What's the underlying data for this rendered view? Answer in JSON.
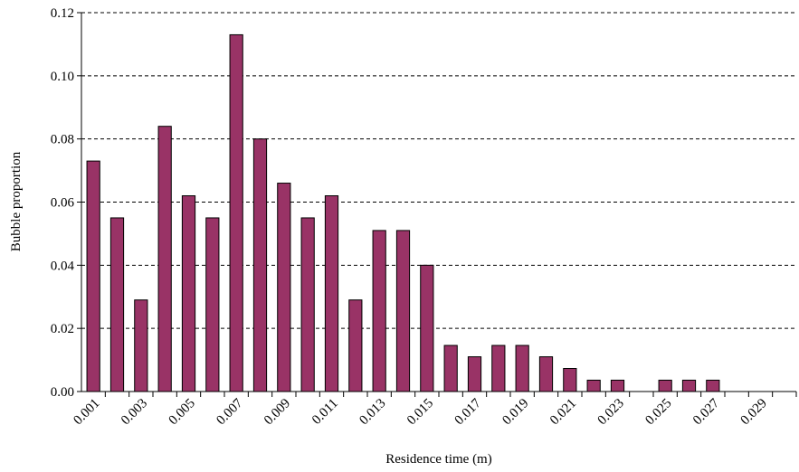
{
  "chart_data": {
    "type": "bar",
    "x_label": "Residence time (m)",
    "y_label": "Bubble proportion",
    "categories": [
      "0.001",
      null,
      "0.003",
      null,
      "0.005",
      null,
      "0.007",
      null,
      "0.009",
      null,
      "0.011",
      null,
      "0.013",
      null,
      "0.015",
      null,
      "0.017",
      null,
      "0.019",
      null,
      "0.021",
      null,
      "0.023",
      null,
      "0.025",
      null,
      "0.027",
      null,
      "0.029",
      null
    ],
    "values": [
      0.073,
      0.055,
      0.029,
      0.084,
      0.062,
      0.055,
      0.113,
      0.08,
      0.066,
      0.055,
      0.062,
      0.029,
      0.051,
      0.051,
      0.04,
      0.0146,
      0.011,
      0.0146,
      0.0146,
      0.011,
      0.0073,
      0.0036,
      0.0036,
      0,
      0.0036,
      0.0036,
      0.0036,
      0,
      0,
      0
    ],
    "color": "#993366",
    "ylim": [
      0,
      0.12
    ],
    "yticks": [
      {
        "value": 0,
        "label": "0.00"
      },
      {
        "value": 0.02,
        "label": "0.02"
      },
      {
        "value": 0.04,
        "label": "0.04"
      },
      {
        "value": 0.06,
        "label": "0.06"
      },
      {
        "value": 0.08,
        "label": "0.08"
      },
      {
        "value": 0.1,
        "label": "0.10"
      },
      {
        "value": 0.12,
        "label": "0.12"
      }
    ],
    "grid": true
  }
}
